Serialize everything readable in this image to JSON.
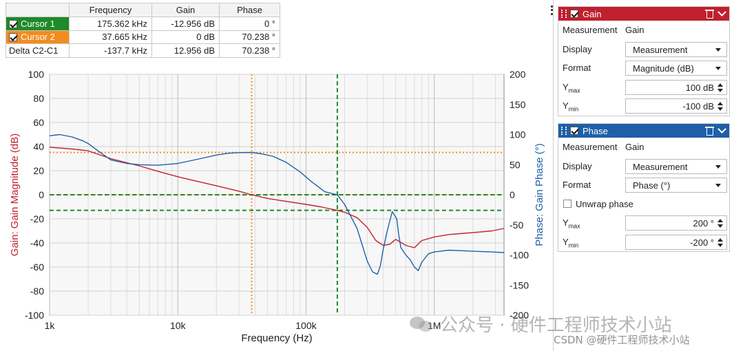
{
  "cursor_table": {
    "headers": [
      "",
      "Frequency",
      "Gain",
      "Phase"
    ],
    "rows": [
      {
        "name": "Cursor 1",
        "frequency": "175.362 kHz",
        "gain": "-12.956 dB",
        "phase": "0 °",
        "color": "#1f8a28"
      },
      {
        "name": "Cursor 2",
        "frequency": "37.665 kHz",
        "gain": "0 dB",
        "phase": "70.238 °",
        "color": "#f28c1e"
      },
      {
        "name": "Delta C2-C1",
        "frequency": "-137.7 kHz",
        "gain": "12.956 dB",
        "phase": "70.238 °"
      }
    ]
  },
  "chart_data": {
    "type": "line",
    "xlabel": "Frequency (Hz)",
    "ylabel_left": "Gain: Gain Magnitude (dB)",
    "ylabel_right": "Phase: Gain Phase (°)",
    "x_scale": "log",
    "xlim": [
      1000,
      3500000
    ],
    "x_ticks": [
      {
        "value": 1000,
        "label": "1k"
      },
      {
        "value": 10000,
        "label": "10k"
      },
      {
        "value": 100000,
        "label": "100k"
      },
      {
        "value": 1000000,
        "label": "1M"
      }
    ],
    "ylim_left": [
      -100,
      100
    ],
    "y_ticks_left": [
      100,
      80,
      60,
      40,
      20,
      0,
      -20,
      -40,
      -60,
      -80,
      -100
    ],
    "ylim_right": [
      -200,
      200
    ],
    "y_ticks_right": [
      200,
      150,
      100,
      50,
      0,
      -50,
      -100,
      -150,
      -200
    ],
    "grid": true,
    "colors": {
      "gain": "#c0202e",
      "phase": "#1f5fa8",
      "cursor1": "#1f8a28",
      "cursor2": "#f28c1e"
    },
    "series": [
      {
        "axis": "left",
        "x": [
          1000,
          1500,
          2000,
          3000,
          5000,
          7000,
          10000,
          15000,
          20000,
          30000,
          37665,
          50000,
          70000,
          100000,
          130000,
          175362,
          200000,
          250000,
          300000,
          350000,
          400000,
          450000,
          500000,
          600000,
          700000,
          800000,
          1000000,
          1300000,
          1700000,
          2200000,
          2800000,
          3500000
        ],
        "y": [
          39.5,
          38,
          36.5,
          30,
          24,
          19.5,
          15,
          10.5,
          7.5,
          3,
          0,
          -3,
          -5.5,
          -8,
          -10,
          -12.956,
          -14.5,
          -19,
          -27,
          -38,
          -42,
          -41,
          -37,
          -42,
          -44,
          -38,
          -35,
          -33,
          -32,
          -31,
          -30,
          -28
        ]
      },
      {
        "axis": "right",
        "x": [
          1000,
          1200,
          1500,
          1800,
          2000,
          2500,
          3000,
          4000,
          5000,
          7000,
          10000,
          15000,
          20000,
          25000,
          30000,
          37665,
          45000,
          55000,
          70000,
          90000,
          110000,
          140000,
          175362,
          200000,
          250000,
          300000,
          330000,
          360000,
          380000,
          400000,
          430000,
          470000,
          510000,
          530000,
          550000,
          600000,
          650000,
          700000,
          750000,
          800000,
          900000,
          1000000,
          1300000,
          1700000,
          2200000,
          2800000,
          3500000
        ],
        "y": [
          98,
          100,
          96,
          90,
          85,
          70,
          58,
          52,
          50,
          49,
          52,
          60,
          66,
          69,
          70,
          70.238,
          68,
          64,
          54,
          38,
          22,
          5,
          0,
          -16,
          -56,
          -110,
          -128,
          -132,
          -118,
          -90,
          -60,
          -28,
          -40,
          -68,
          -88,
          -100,
          -108,
          -120,
          -126,
          -112,
          -98,
          -95,
          -92,
          -93,
          -94,
          -95,
          -96
        ]
      }
    ],
    "cursors": [
      {
        "name": "Cursor 1",
        "frequency": 175362,
        "gain_db": -12.956,
        "phase_deg": 0
      },
      {
        "name": "Cursor 2",
        "frequency": 37665,
        "gain_db": 0,
        "phase_deg": 70.238
      }
    ]
  },
  "gain_panel": {
    "title": "Gain",
    "color": "#c0202e",
    "measurement_label": "Measurement",
    "measurement_value": "Gain",
    "display_label": "Display",
    "display_value": "Measurement",
    "format_label": "Format",
    "format_value": "Magnitude (dB)",
    "ymax_label": "Y",
    "ymax_sub": "max",
    "ymax_value": "100 dB",
    "ymin_label": "Y",
    "ymin_sub": "min",
    "ymin_value": "-100 dB"
  },
  "phase_panel": {
    "title": "Phase",
    "color": "#1f5fa8",
    "measurement_label": "Measurement",
    "measurement_value": "Gain",
    "display_label": "Display",
    "display_value": "Measurement",
    "format_label": "Format",
    "format_value": "Phase (°)",
    "unwrap_label": "Unwrap phase",
    "ymax_label": "Y",
    "ymax_sub": "max",
    "ymax_value": "200 °",
    "ymin_label": "Y",
    "ymin_sub": "min",
    "ymin_value": "-200 °"
  },
  "watermark": {
    "text": "公众号 · 硬件工程师技术小站",
    "csdn": "CSDN @硬件工程师技术小站"
  }
}
